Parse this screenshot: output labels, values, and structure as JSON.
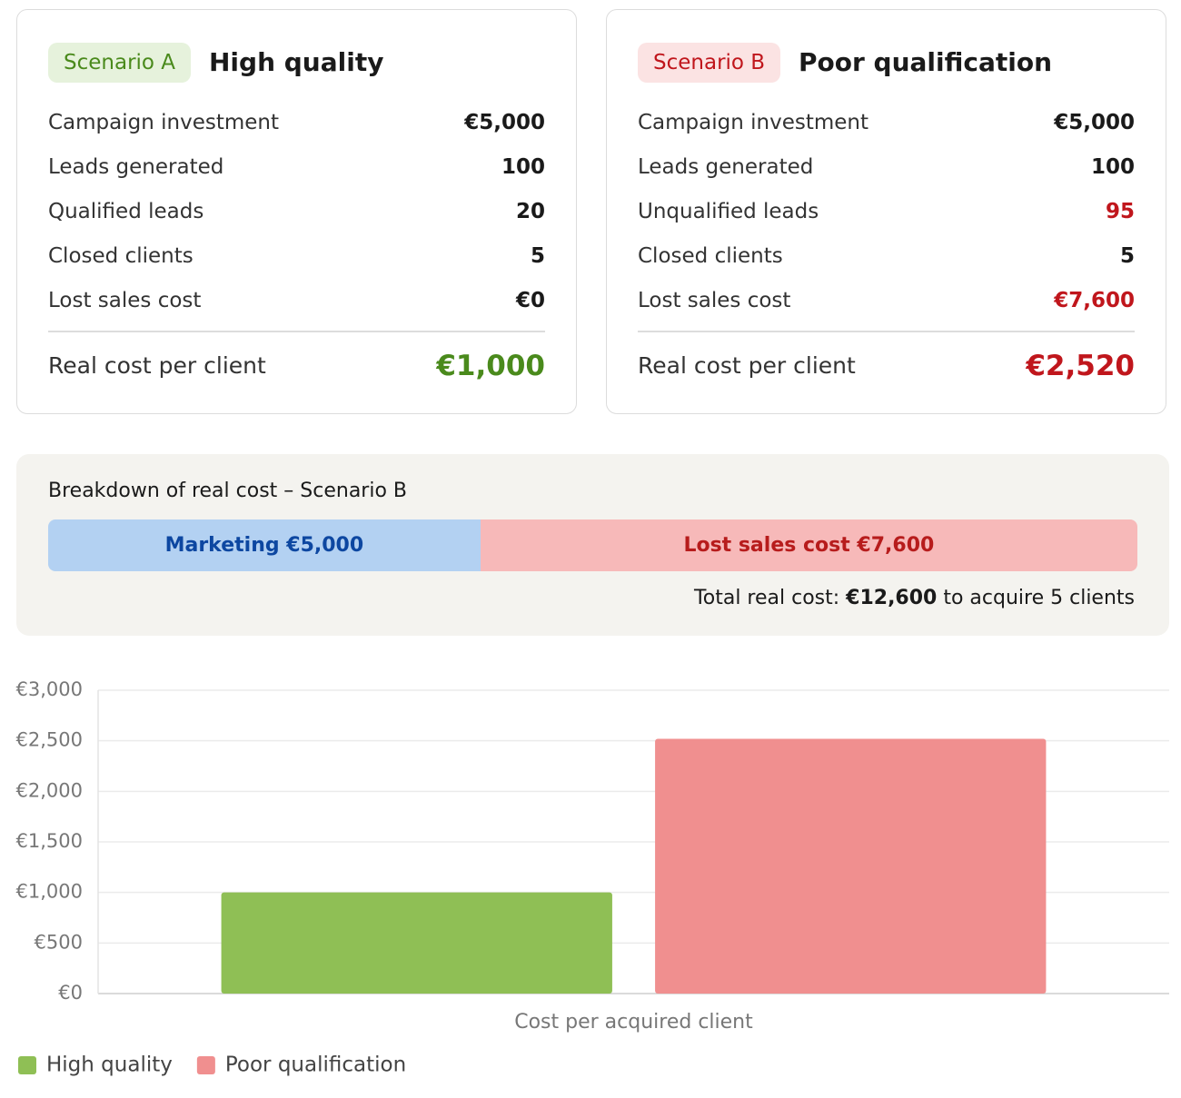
{
  "scenarios": [
    {
      "badge": "Scenario A",
      "badge_color": "#e6f2dc",
      "badge_text_color": "#4a8a1c",
      "title": "High quality",
      "rows": [
        {
          "label": "Campaign investment",
          "value": "€5,000"
        },
        {
          "label": "Leads generated",
          "value": "100"
        },
        {
          "label": "Qualified leads",
          "value": "20"
        },
        {
          "label": "Closed clients",
          "value": "5"
        },
        {
          "label": "Lost sales cost",
          "value": "€0"
        }
      ],
      "total_label": "Real cost per client",
      "total": "€1,000",
      "total_color": "#4a8a1c"
    },
    {
      "badge": "Scenario B",
      "badge_color": "#fbe3e3",
      "badge_text_color": "#c0161c",
      "title": "Poor qualification",
      "rows": [
        {
          "label": "Campaign investment",
          "value": "€5,000"
        },
        {
          "label": "Leads generated",
          "value": "100"
        },
        {
          "label": "Unqualified leads",
          "value": "95",
          "color": "#c0161c"
        },
        {
          "label": "Closed clients",
          "value": "5"
        },
        {
          "label": "Lost sales cost",
          "value": "€7,600",
          "color": "#c0161c"
        }
      ],
      "total_label": "Real cost per client",
      "total": "€2,520",
      "total_color": "#c0161c"
    }
  ],
  "breakdown": {
    "title": "Breakdown of real cost – Scenario B",
    "segments": [
      {
        "label": "Marketing €5,000",
        "value": 5000,
        "color": "#b3d1f2",
        "text_color": "#0d47a1"
      },
      {
        "label": "Lost sales cost €7,600",
        "value": 7600,
        "color": "#f7b9b9",
        "text_color": "#b71c1c"
      }
    ],
    "total_text": {
      "prefix": "Total real cost: ",
      "amount": "€12,600",
      "suffix": " to acquire 5 clients"
    }
  },
  "chart_data": {
    "type": "bar",
    "xlabel": "Cost per acquired client",
    "categories": [
      null
    ],
    "series": [
      {
        "name": "High quality",
        "color": "#8fbf55",
        "values": [
          1000
        ]
      },
      {
        "name": "Poor qualification",
        "color": "#f08f8f",
        "values": [
          2520
        ]
      }
    ],
    "ylim": [
      0,
      3000
    ],
    "yticks": [
      {
        "value": 0,
        "label": "€0"
      },
      {
        "value": 500,
        "label": "€500"
      },
      {
        "value": 1000,
        "label": "€1,000"
      },
      {
        "value": 1500,
        "label": "€1,500"
      },
      {
        "value": 2000,
        "label": "€2,000"
      },
      {
        "value": 2500,
        "label": "€2,500"
      },
      {
        "value": 3000,
        "label": "€3,000"
      }
    ],
    "grid": true,
    "legend": "bottom-left"
  }
}
